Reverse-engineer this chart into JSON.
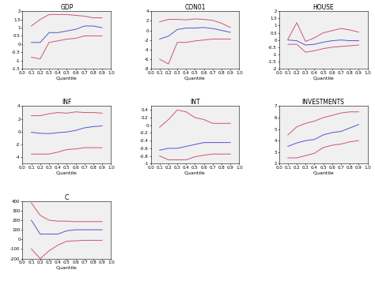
{
  "quantiles": [
    0.1,
    0.2,
    0.3,
    0.4,
    0.5,
    0.6,
    0.7,
    0.8,
    0.9
  ],
  "subplots": [
    {
      "title": "GDP",
      "ylim": [
        -1.5,
        2.0
      ],
      "yticks": [
        -1.5,
        -1.0,
        -0.5,
        0.0,
        0.5,
        1.0,
        1.5,
        2.0
      ],
      "blue": [
        0.1,
        0.1,
        0.7,
        0.7,
        0.8,
        0.9,
        1.1,
        1.1,
        1.0
      ],
      "pink_upper": [
        1.1,
        1.5,
        1.8,
        1.8,
        1.8,
        1.75,
        1.7,
        1.6,
        1.6
      ],
      "pink_lower": [
        -0.8,
        -0.9,
        0.1,
        0.2,
        0.3,
        0.35,
        0.5,
        0.5,
        0.5
      ]
    },
    {
      "title": "CON01",
      "ylim": [
        -8.0,
        4.0
      ],
      "yticks": [
        -8,
        -6,
        -4,
        -2,
        0,
        2,
        4
      ],
      "blue": [
        -1.8,
        -1.2,
        0.2,
        0.5,
        0.5,
        0.6,
        0.4,
        0.0,
        -0.4
      ],
      "pink_upper": [
        1.8,
        2.3,
        2.3,
        2.2,
        2.4,
        2.3,
        2.1,
        1.5,
        0.6
      ],
      "pink_lower": [
        -6.0,
        -7.0,
        -2.5,
        -2.5,
        -2.2,
        -2.0,
        -1.8,
        -1.8,
        -1.8
      ]
    },
    {
      "title": "HOUSE",
      "ylim": [
        -2.0,
        2.0
      ],
      "yticks": [
        -2.0,
        -1.5,
        -1.0,
        -0.5,
        0.0,
        0.5,
        1.0,
        1.5,
        2.0
      ],
      "blue": [
        0.0,
        -0.05,
        -0.35,
        -0.3,
        -0.15,
        -0.05,
        0.0,
        -0.05,
        -0.05
      ],
      "pink_upper": [
        0.05,
        1.2,
        -0.1,
        0.15,
        0.5,
        0.65,
        0.8,
        0.7,
        0.55
      ],
      "pink_lower": [
        -0.3,
        -0.3,
        -0.85,
        -0.75,
        -0.6,
        -0.5,
        -0.45,
        -0.4,
        -0.35
      ]
    },
    {
      "title": "INF",
      "ylim": [
        -5.0,
        4.0
      ],
      "yticks": [
        -4,
        -2,
        0,
        2,
        4
      ],
      "blue": [
        -0.1,
        -0.25,
        -0.3,
        -0.15,
        -0.05,
        0.2,
        0.6,
        0.8,
        0.9
      ],
      "pink_upper": [
        2.5,
        2.5,
        2.8,
        3.0,
        2.9,
        3.1,
        3.0,
        3.0,
        2.9
      ],
      "pink_lower": [
        -3.5,
        -3.5,
        -3.5,
        -3.2,
        -2.8,
        -2.7,
        -2.5,
        -2.5,
        -2.5
      ]
    },
    {
      "title": "INT",
      "ylim": [
        -1.0,
        0.5
      ],
      "yticks": [
        -1.0,
        -0.8,
        -0.6,
        -0.4,
        -0.2,
        0.0,
        0.2,
        0.4
      ],
      "blue": [
        -0.65,
        -0.6,
        -0.6,
        -0.55,
        -0.5,
        -0.45,
        -0.45,
        -0.45,
        -0.45
      ],
      "pink_upper": [
        -0.05,
        0.15,
        0.4,
        0.35,
        0.2,
        0.15,
        0.05,
        0.05,
        0.05
      ],
      "pink_lower": [
        -0.8,
        -0.9,
        -0.9,
        -0.9,
        -0.82,
        -0.78,
        -0.75,
        -0.75,
        -0.75
      ]
    },
    {
      "title": "INVESTMENTS",
      "ylim": [
        2.0,
        7.0
      ],
      "yticks": [
        2,
        3,
        4,
        5,
        6,
        7
      ],
      "blue": [
        3.5,
        3.8,
        4.0,
        4.1,
        4.5,
        4.7,
        4.8,
        5.1,
        5.4
      ],
      "pink_upper": [
        4.5,
        5.2,
        5.5,
        5.7,
        6.0,
        6.2,
        6.4,
        6.5,
        6.5
      ],
      "pink_lower": [
        2.5,
        2.5,
        2.7,
        2.9,
        3.4,
        3.6,
        3.7,
        3.9,
        4.0
      ]
    },
    {
      "title": "C",
      "ylim": [
        -200.0,
        400.0
      ],
      "yticks": [
        -200,
        -100,
        0,
        100,
        200,
        300,
        400
      ],
      "blue": [
        200.0,
        55.0,
        55.0,
        55.0,
        90.0,
        100.0,
        100.0,
        100.0,
        100.0
      ],
      "pink_upper": [
        380.0,
        250.0,
        200.0,
        190.0,
        190.0,
        185.0,
        185.0,
        185.0,
        185.0
      ],
      "pink_lower": [
        -100.0,
        -200.0,
        -120.0,
        -60.0,
        -20.0,
        -15.0,
        -10.0,
        -10.0,
        -10.0
      ]
    }
  ],
  "blue_color": "#5555cc",
  "pink_color": "#cc5577",
  "xlabel": "Quantile",
  "tick_fontsize": 4.0,
  "label_fontsize": 4.5,
  "title_fontsize": 5.5,
  "linewidth": 0.7,
  "bg_color": "#f0f0f0"
}
